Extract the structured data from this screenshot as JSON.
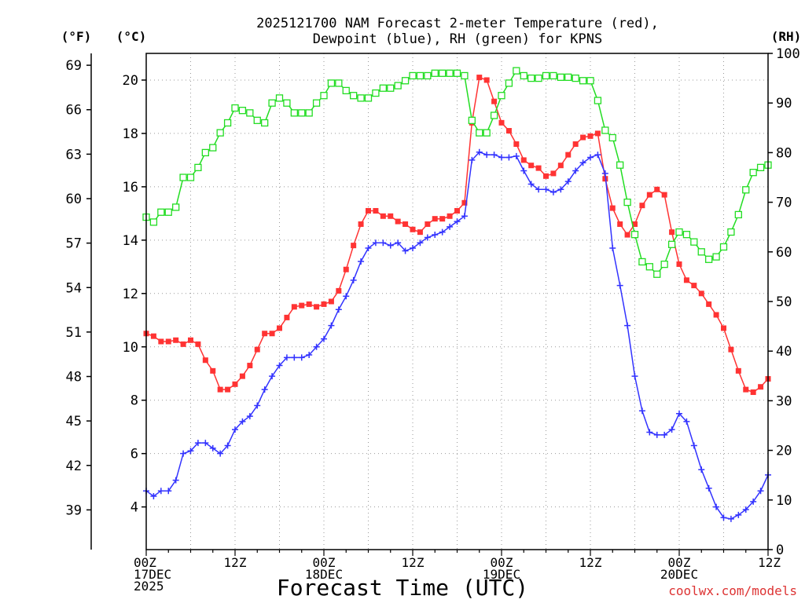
{
  "chart_data": {
    "type": "line",
    "title_lines": [
      "2025121700 NAM Forecast 2-meter Temperature (red),",
      "Dewpoint (blue), RH (green) for KPNS"
    ],
    "unit_labels": {
      "fahrenheit": "(°F)",
      "celsius": "(°C)",
      "rh": "(RH)"
    },
    "xlabel": "Forecast Time (UTC)",
    "credit": "coolwx.com/models",
    "x_unit": "forecast hour",
    "xlim": [
      0,
      84
    ],
    "celsius_range": [
      2.4,
      21.0
    ],
    "rh_range": [
      0,
      100
    ],
    "fahrenheit_ticks": [
      39,
      42,
      45,
      48,
      51,
      54,
      57,
      60,
      63,
      66,
      69
    ],
    "celsius_ticks": [
      4,
      6,
      8,
      10,
      12,
      14,
      16,
      18,
      20
    ],
    "rh_ticks": [
      0,
      10,
      20,
      30,
      40,
      50,
      60,
      70,
      80,
      90,
      100
    ],
    "x_ticks": [
      {
        "x": 0,
        "lines": [
          "00Z",
          "17DEC",
          "2025"
        ]
      },
      {
        "x": 12,
        "lines": [
          "12Z"
        ]
      },
      {
        "x": 24,
        "lines": [
          "00Z",
          "18DEC"
        ]
      },
      {
        "x": 36,
        "lines": [
          "12Z"
        ]
      },
      {
        "x": 48,
        "lines": [
          "00Z",
          "19DEC"
        ]
      },
      {
        "x": 60,
        "lines": [
          "12Z"
        ]
      },
      {
        "x": 72,
        "lines": [
          "00Z",
          "20DEC"
        ]
      },
      {
        "x": 84,
        "lines": [
          "12Z"
        ]
      }
    ],
    "grid": true,
    "series": [
      {
        "name": "Temperature",
        "color": "#ff3333",
        "marker": "filled-square",
        "axis": "celsius",
        "points": [
          [
            0,
            10.5
          ],
          [
            1,
            10.4
          ],
          [
            2,
            10.2
          ],
          [
            3,
            10.2
          ],
          [
            4,
            10.25
          ],
          [
            5,
            10.1
          ],
          [
            6,
            10.25
          ],
          [
            7,
            10.1
          ],
          [
            8,
            9.5
          ],
          [
            9,
            9.1
          ],
          [
            10,
            8.4
          ],
          [
            11,
            8.4
          ],
          [
            12,
            8.6
          ],
          [
            13,
            8.9
          ],
          [
            14,
            9.3
          ],
          [
            15,
            9.9
          ],
          [
            16,
            10.5
          ],
          [
            17,
            10.5
          ],
          [
            18,
            10.7
          ],
          [
            19,
            11.1
          ],
          [
            20,
            11.5
          ],
          [
            21,
            11.55
          ],
          [
            22,
            11.6
          ],
          [
            23,
            11.5
          ],
          [
            24,
            11.6
          ],
          [
            25,
            11.7
          ],
          [
            26,
            12.1
          ],
          [
            27,
            12.9
          ],
          [
            28,
            13.8
          ],
          [
            29,
            14.6
          ],
          [
            30,
            15.1
          ],
          [
            31,
            15.1
          ],
          [
            32,
            14.9
          ],
          [
            33,
            14.9
          ],
          [
            34,
            14.7
          ],
          [
            35,
            14.6
          ],
          [
            36,
            14.4
          ],
          [
            37,
            14.3
          ],
          [
            38,
            14.6
          ],
          [
            39,
            14.8
          ],
          [
            40,
            14.8
          ],
          [
            41,
            14.9
          ],
          [
            42,
            15.1
          ],
          [
            43,
            15.4
          ],
          [
            44,
            18.4
          ],
          [
            45,
            20.1
          ],
          [
            46,
            20.0
          ],
          [
            47,
            19.2
          ],
          [
            48,
            18.4
          ],
          [
            49,
            18.1
          ],
          [
            50,
            17.6
          ],
          [
            51,
            17.0
          ],
          [
            52,
            16.8
          ],
          [
            53,
            16.7
          ],
          [
            54,
            16.4
          ],
          [
            55,
            16.5
          ],
          [
            56,
            16.8
          ],
          [
            57,
            17.2
          ],
          [
            58,
            17.6
          ],
          [
            59,
            17.85
          ],
          [
            60,
            17.9
          ],
          [
            61,
            18.0
          ],
          [
            62,
            16.3
          ],
          [
            63,
            15.2
          ],
          [
            64,
            14.6
          ],
          [
            65,
            14.2
          ],
          [
            66,
            14.6
          ],
          [
            67,
            15.3
          ],
          [
            68,
            15.7
          ],
          [
            69,
            15.9
          ],
          [
            70,
            15.7
          ],
          [
            71,
            14.3
          ],
          [
            72,
            13.1
          ],
          [
            73,
            12.5
          ],
          [
            74,
            12.3
          ],
          [
            75,
            12.0
          ],
          [
            76,
            11.6
          ],
          [
            77,
            11.2
          ],
          [
            78,
            10.7
          ],
          [
            79,
            9.9
          ],
          [
            80,
            9.1
          ],
          [
            81,
            8.4
          ],
          [
            82,
            8.3
          ],
          [
            83,
            8.5
          ],
          [
            84,
            8.8
          ]
        ]
      },
      {
        "name": "Dewpoint",
        "color": "#3333ff",
        "marker": "plus",
        "axis": "celsius",
        "points": [
          [
            0,
            4.6
          ],
          [
            1,
            4.4
          ],
          [
            2,
            4.6
          ],
          [
            3,
            4.6
          ],
          [
            4,
            5.0
          ],
          [
            5,
            6.0
          ],
          [
            6,
            6.1
          ],
          [
            7,
            6.4
          ],
          [
            8,
            6.4
          ],
          [
            9,
            6.2
          ],
          [
            10,
            6.0
          ],
          [
            11,
            6.3
          ],
          [
            12,
            6.9
          ],
          [
            13,
            7.2
          ],
          [
            14,
            7.4
          ],
          [
            15,
            7.8
          ],
          [
            16,
            8.4
          ],
          [
            17,
            8.9
          ],
          [
            18,
            9.3
          ],
          [
            19,
            9.6
          ],
          [
            20,
            9.6
          ],
          [
            21,
            9.6
          ],
          [
            22,
            9.7
          ],
          [
            23,
            10.0
          ],
          [
            24,
            10.3
          ],
          [
            25,
            10.8
          ],
          [
            26,
            11.4
          ],
          [
            27,
            11.9
          ],
          [
            28,
            12.5
          ],
          [
            29,
            13.2
          ],
          [
            30,
            13.7
          ],
          [
            31,
            13.9
          ],
          [
            32,
            13.9
          ],
          [
            33,
            13.8
          ],
          [
            34,
            13.9
          ],
          [
            35,
            13.6
          ],
          [
            36,
            13.7
          ],
          [
            37,
            13.9
          ],
          [
            38,
            14.1
          ],
          [
            39,
            14.2
          ],
          [
            40,
            14.3
          ],
          [
            41,
            14.5
          ],
          [
            42,
            14.7
          ],
          [
            43,
            14.9
          ],
          [
            44,
            17.0
          ],
          [
            45,
            17.3
          ],
          [
            46,
            17.2
          ],
          [
            47,
            17.2
          ],
          [
            48,
            17.1
          ],
          [
            49,
            17.1
          ],
          [
            50,
            17.15
          ],
          [
            51,
            16.6
          ],
          [
            52,
            16.1
          ],
          [
            53,
            15.9
          ],
          [
            54,
            15.9
          ],
          [
            55,
            15.8
          ],
          [
            56,
            15.9
          ],
          [
            57,
            16.2
          ],
          [
            58,
            16.6
          ],
          [
            59,
            16.9
          ],
          [
            60,
            17.1
          ],
          [
            61,
            17.2
          ],
          [
            62,
            16.5
          ],
          [
            63,
            13.7
          ],
          [
            64,
            12.3
          ],
          [
            65,
            10.8
          ],
          [
            66,
            8.9
          ],
          [
            67,
            7.6
          ],
          [
            68,
            6.8
          ],
          [
            69,
            6.7
          ],
          [
            70,
            6.7
          ],
          [
            71,
            6.9
          ],
          [
            72,
            7.5
          ],
          [
            73,
            7.2
          ],
          [
            74,
            6.3
          ],
          [
            75,
            5.4
          ],
          [
            76,
            4.7
          ],
          [
            77,
            4.0
          ],
          [
            78,
            3.6
          ],
          [
            79,
            3.55
          ],
          [
            80,
            3.7
          ],
          [
            81,
            3.9
          ],
          [
            82,
            4.2
          ],
          [
            83,
            4.6
          ],
          [
            84,
            5.2
          ]
        ]
      },
      {
        "name": "RH",
        "color": "#22dd22",
        "marker": "open-square",
        "axis": "rh",
        "points": [
          [
            0,
            67
          ],
          [
            1,
            66
          ],
          [
            2,
            68
          ],
          [
            3,
            68
          ],
          [
            4,
            69
          ],
          [
            5,
            75
          ],
          [
            6,
            75
          ],
          [
            7,
            77
          ],
          [
            8,
            80
          ],
          [
            9,
            81
          ],
          [
            10,
            84
          ],
          [
            11,
            86
          ],
          [
            12,
            89
          ],
          [
            13,
            88.5
          ],
          [
            14,
            88
          ],
          [
            15,
            86.5
          ],
          [
            16,
            86
          ],
          [
            17,
            90
          ],
          [
            18,
            91
          ],
          [
            19,
            90
          ],
          [
            20,
            88
          ],
          [
            21,
            88
          ],
          [
            22,
            88
          ],
          [
            23,
            90
          ],
          [
            24,
            91.5
          ],
          [
            25,
            94
          ],
          [
            26,
            94
          ],
          [
            27,
            92.5
          ],
          [
            28,
            91.5
          ],
          [
            29,
            91
          ],
          [
            30,
            91
          ],
          [
            31,
            92
          ],
          [
            32,
            93
          ],
          [
            33,
            93
          ],
          [
            34,
            93.5
          ],
          [
            35,
            94.5
          ],
          [
            36,
            95.5
          ],
          [
            37,
            95.5
          ],
          [
            38,
            95.5
          ],
          [
            39,
            96
          ],
          [
            40,
            96
          ],
          [
            41,
            96
          ],
          [
            42,
            96
          ],
          [
            43,
            95.5
          ],
          [
            44,
            86.5
          ],
          [
            45,
            84
          ],
          [
            46,
            84
          ],
          [
            47,
            87.5
          ],
          [
            48,
            91.5
          ],
          [
            49,
            94
          ],
          [
            50,
            96.5
          ],
          [
            51,
            95.5
          ],
          [
            52,
            95
          ],
          [
            53,
            95
          ],
          [
            54,
            95.5
          ],
          [
            55,
            95.5
          ],
          [
            56,
            95.2
          ],
          [
            57,
            95.2
          ],
          [
            58,
            95
          ],
          [
            59,
            94.5
          ],
          [
            60,
            94.5
          ],
          [
            61,
            90.5
          ],
          [
            62,
            84.5
          ],
          [
            63,
            83
          ],
          [
            64,
            77.5
          ],
          [
            65,
            70
          ],
          [
            66,
            63.5
          ],
          [
            67,
            58
          ],
          [
            68,
            57
          ],
          [
            69,
            55.5
          ],
          [
            70,
            57.5
          ],
          [
            71,
            61.5
          ],
          [
            72,
            64
          ],
          [
            73,
            63.5
          ],
          [
            74,
            62
          ],
          [
            75,
            60
          ],
          [
            76,
            58.5
          ],
          [
            77,
            59
          ],
          [
            78,
            61
          ],
          [
            79,
            64
          ],
          [
            80,
            67.5
          ],
          [
            81,
            72.5
          ],
          [
            82,
            76
          ],
          [
            83,
            77
          ],
          [
            84,
            77.5
          ]
        ]
      }
    ]
  }
}
